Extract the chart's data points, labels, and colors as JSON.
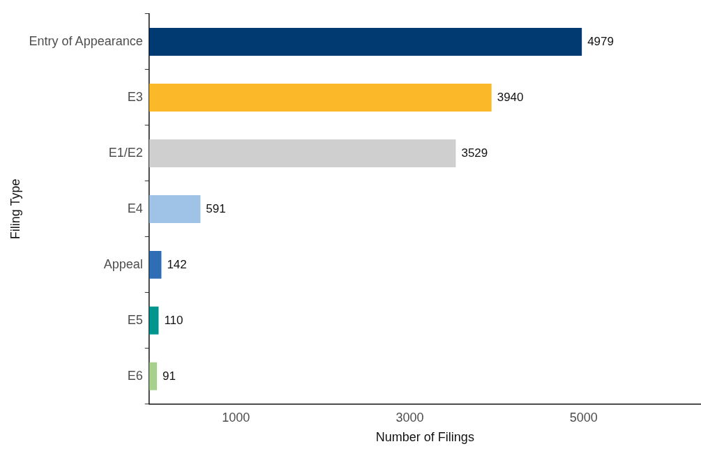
{
  "chart_data": {
    "type": "bar",
    "orientation": "horizontal",
    "xlabel": "Number of Filings",
    "ylabel": "Filing Type",
    "categories": [
      "Entry of Appearance",
      "E3",
      "E1/E2",
      "E4",
      "Appeal",
      "E5",
      "E6"
    ],
    "values": [
      4979,
      3940,
      3529,
      591,
      142,
      110,
      91
    ],
    "colors": [
      "#003a70",
      "#fbb829",
      "#d0cfd0",
      "#9fc3e6",
      "#2f6eb5",
      "#00968f",
      "#a8d08d"
    ],
    "xlim": [
      0,
      6350
    ],
    "xticks": [
      1000,
      3000,
      5000
    ],
    "grid": false,
    "legend": false,
    "data_labels": true
  }
}
